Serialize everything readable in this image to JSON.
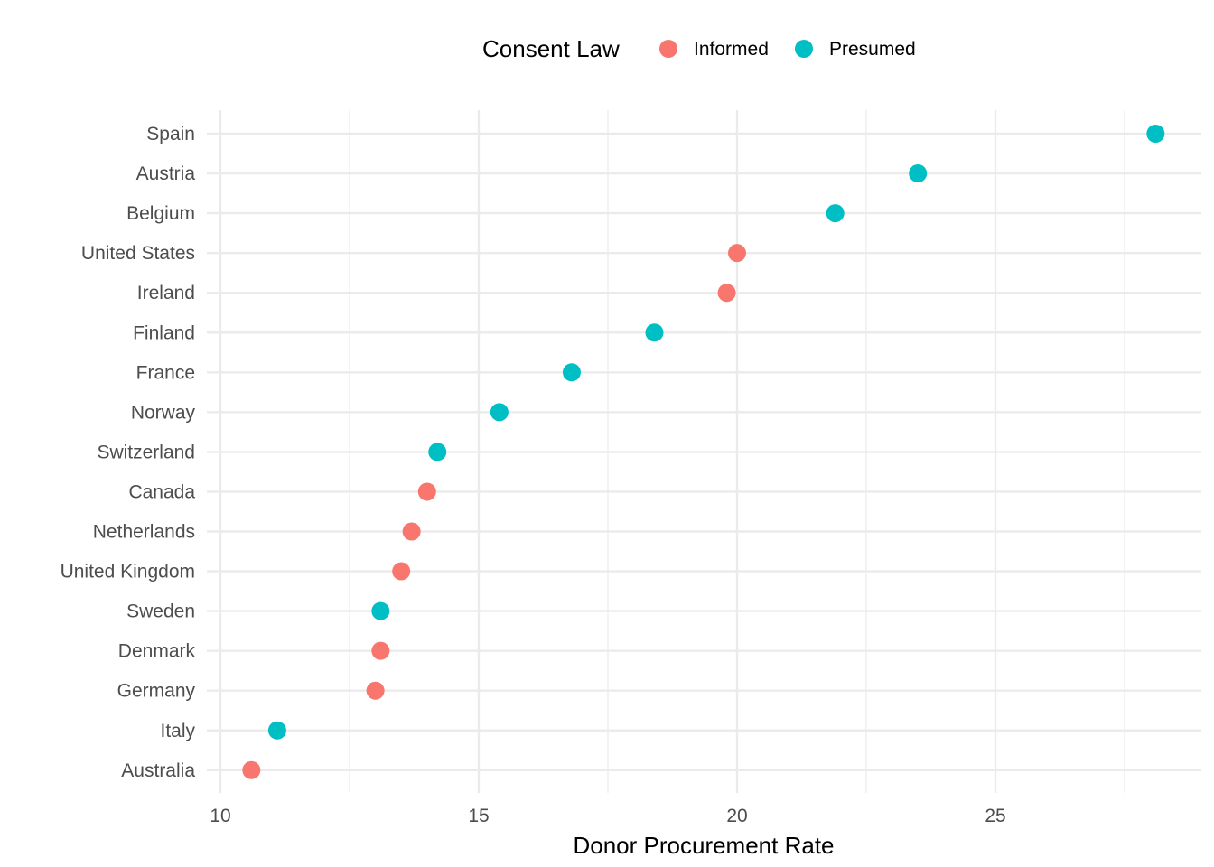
{
  "chart_data": {
    "type": "scatter",
    "title": "",
    "xlabel": "Donor Procurement Rate",
    "ylabel": "",
    "xlim": [
      9.9,
      28.5
    ],
    "x_ticks": [
      10,
      15,
      20,
      25
    ],
    "grid": true,
    "legend": {
      "title": "Consent Law",
      "position": "top",
      "entries": [
        {
          "name": "Informed",
          "color": "#F8766D"
        },
        {
          "name": "Presumed",
          "color": "#00BFC4"
        }
      ]
    },
    "categories": [
      "Spain",
      "Austria",
      "Belgium",
      "United States",
      "Ireland",
      "Finland",
      "France",
      "Norway",
      "Switzerland",
      "Canada",
      "Netherlands",
      "United Kingdom",
      "Sweden",
      "Denmark",
      "Germany",
      "Italy",
      "Australia"
    ],
    "points": [
      {
        "country": "Spain",
        "value": 28.1,
        "consent": "Presumed"
      },
      {
        "country": "Austria",
        "value": 23.5,
        "consent": "Presumed"
      },
      {
        "country": "Belgium",
        "value": 21.9,
        "consent": "Presumed"
      },
      {
        "country": "United States",
        "value": 20.0,
        "consent": "Informed"
      },
      {
        "country": "Ireland",
        "value": 19.8,
        "consent": "Informed"
      },
      {
        "country": "Finland",
        "value": 18.4,
        "consent": "Presumed"
      },
      {
        "country": "France",
        "value": 16.8,
        "consent": "Presumed"
      },
      {
        "country": "Norway",
        "value": 15.4,
        "consent": "Presumed"
      },
      {
        "country": "Switzerland",
        "value": 14.2,
        "consent": "Presumed"
      },
      {
        "country": "Canada",
        "value": 14.0,
        "consent": "Informed"
      },
      {
        "country": "Netherlands",
        "value": 13.7,
        "consent": "Informed"
      },
      {
        "country": "United Kingdom",
        "value": 13.5,
        "consent": "Informed"
      },
      {
        "country": "Sweden",
        "value": 13.1,
        "consent": "Presumed"
      },
      {
        "country": "Denmark",
        "value": 13.1,
        "consent": "Informed"
      },
      {
        "country": "Germany",
        "value": 13.0,
        "consent": "Informed"
      },
      {
        "country": "Italy",
        "value": 11.1,
        "consent": "Presumed"
      },
      {
        "country": "Australia",
        "value": 10.6,
        "consent": "Informed"
      }
    ]
  }
}
